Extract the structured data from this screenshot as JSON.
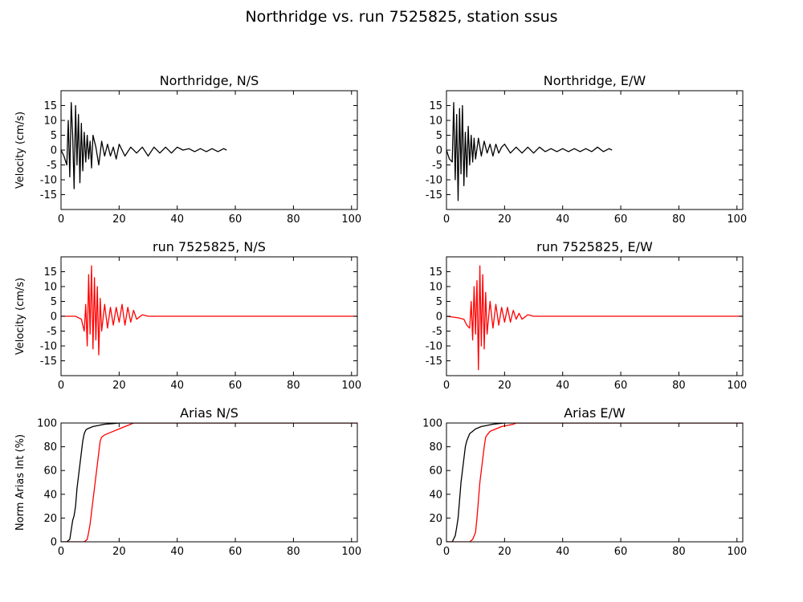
{
  "figure": {
    "title": "Northridge vs. run 7525825, station ssus"
  },
  "chart_data": [
    {
      "type": "line",
      "title": "Northridge, N/S",
      "xlabel": "",
      "ylabel": "Velocity (cm/s)",
      "xlim": [
        0,
        102
      ],
      "ylim": [
        -20,
        20
      ],
      "xticks": [
        0,
        20,
        40,
        60,
        80,
        100
      ],
      "yticks": [
        -15,
        -10,
        -5,
        0,
        5,
        10,
        15
      ],
      "grid": false,
      "series": [
        {
          "color": "#000000",
          "x": [
            0,
            1,
            2,
            2.5,
            3,
            3.5,
            4,
            4.5,
            5,
            5.5,
            6,
            6.5,
            7,
            7.5,
            8,
            8.5,
            9,
            9.5,
            10,
            10.5,
            11,
            12,
            13,
            14,
            15,
            16,
            17,
            18,
            19,
            20,
            22,
            24,
            26,
            28,
            30,
            32,
            34,
            36,
            38,
            40,
            42,
            44,
            46,
            48,
            50,
            52,
            54,
            56,
            57
          ],
          "y": [
            0,
            -2,
            -5,
            10,
            -9,
            16,
            5,
            -13,
            15,
            -5,
            12,
            -11,
            9,
            -7,
            6,
            -4,
            5,
            -3,
            3,
            -6,
            5,
            1,
            -5,
            3,
            -2,
            2,
            -2,
            1,
            -3,
            2,
            -2,
            1,
            -1,
            1,
            -2,
            1,
            -1,
            1,
            -1,
            1,
            0,
            0.5,
            -0.5,
            0.5,
            -0.5,
            0.5,
            -0.5,
            0.5,
            0
          ]
        }
      ]
    },
    {
      "type": "line",
      "title": "Northridge, E/W",
      "xlabel": "",
      "ylabel": "",
      "xlim": [
        0,
        102
      ],
      "ylim": [
        -20,
        20
      ],
      "xticks": [
        0,
        20,
        40,
        60,
        80,
        100
      ],
      "yticks": [
        -15,
        -10,
        -5,
        0,
        5,
        10,
        15
      ],
      "grid": false,
      "series": [
        {
          "color": "#000000",
          "x": [
            0,
            1,
            2,
            2.5,
            3,
            3.5,
            4,
            4.5,
            5,
            5.5,
            6,
            6.5,
            7,
            7.5,
            8,
            8.5,
            9,
            9.5,
            10,
            11,
            12,
            13,
            14,
            15,
            16,
            17,
            18,
            19,
            20,
            22,
            24,
            26,
            28,
            30,
            32,
            34,
            36,
            38,
            40,
            42,
            44,
            46,
            48,
            50,
            52,
            54,
            56,
            57
          ],
          "y": [
            0,
            -3,
            -4,
            16,
            -10,
            12,
            -17,
            14,
            -8,
            15,
            -12,
            6,
            -9,
            8,
            -5,
            5,
            -4,
            4,
            -3,
            4,
            -2,
            3,
            -1,
            2,
            -2,
            2,
            -1,
            1,
            2,
            -1,
            1,
            -1,
            1,
            -1,
            1,
            -0.5,
            0.5,
            -0.5,
            0.5,
            -0.5,
            0.5,
            -0.5,
            0.5,
            -0.5,
            1,
            -0.5,
            0.5,
            0
          ]
        }
      ]
    },
    {
      "type": "line",
      "title": "run 7525825, N/S",
      "xlabel": "",
      "ylabel": "Velocity (cm/s)",
      "xlim": [
        0,
        102
      ],
      "ylim": [
        -20,
        20
      ],
      "xticks": [
        0,
        20,
        40,
        60,
        80,
        100
      ],
      "yticks": [
        -15,
        -10,
        -5,
        0,
        5,
        10,
        15
      ],
      "grid": false,
      "series": [
        {
          "color": "#ff0000",
          "x": [
            0,
            5,
            7,
            8,
            8.5,
            9,
            9.5,
            10,
            10.5,
            11,
            11.5,
            12,
            12.5,
            13,
            13.5,
            14,
            15,
            16,
            17,
            18,
            19,
            20,
            21,
            22,
            23,
            24,
            25,
            26,
            28,
            30,
            40,
            60,
            80,
            102
          ],
          "y": [
            0,
            0,
            -1,
            -5,
            4,
            -10,
            14,
            -6,
            17,
            -11,
            13,
            -8,
            10,
            -13,
            6,
            -5,
            4,
            -4,
            3,
            -3,
            3,
            -2,
            4,
            -3,
            3,
            -2,
            2,
            -1,
            0.5,
            0,
            0,
            0,
            0,
            0
          ]
        }
      ]
    },
    {
      "type": "line",
      "title": "run 7525825, E/W",
      "xlabel": "",
      "ylabel": "",
      "xlim": [
        0,
        102
      ],
      "ylim": [
        -20,
        20
      ],
      "xticks": [
        0,
        20,
        40,
        60,
        80,
        100
      ],
      "yticks": [
        -15,
        -10,
        -5,
        0,
        5,
        10,
        15
      ],
      "grid": false,
      "series": [
        {
          "color": "#ff0000",
          "x": [
            0,
            4,
            6,
            7,
            8,
            8.5,
            9,
            9.5,
            10,
            10.5,
            11,
            11.5,
            12,
            12.5,
            13,
            13.5,
            14,
            15,
            16,
            17,
            18,
            19,
            20,
            21,
            22,
            23,
            24,
            25,
            26,
            28,
            30,
            40,
            60,
            80,
            102
          ],
          "y": [
            0,
            -0.5,
            -1,
            -3,
            -4,
            5,
            -8,
            10,
            -6,
            12,
            -18,
            17,
            -10,
            14,
            -11,
            8,
            -6,
            5,
            -4,
            4,
            -3,
            3,
            -2,
            3,
            -2,
            2,
            -1,
            1,
            -1,
            0.5,
            0,
            0,
            0,
            0,
            0
          ]
        }
      ]
    },
    {
      "type": "line",
      "title": "Arias N/S",
      "xlabel": "",
      "ylabel": "Norm Arias Int (%)",
      "xlim": [
        0,
        102
      ],
      "ylim": [
        0,
        100
      ],
      "xticks": [
        0,
        20,
        40,
        60,
        80,
        100
      ],
      "yticks": [
        0,
        20,
        40,
        60,
        80,
        100
      ],
      "grid": false,
      "series": [
        {
          "color": "#000000",
          "x": [
            0,
            2,
            3,
            3.5,
            4,
            4.5,
            5,
            5.5,
            6,
            6.5,
            7,
            7.5,
            8,
            8.5,
            9,
            10,
            11,
            13,
            15,
            18,
            20,
            102
          ],
          "y": [
            0,
            0,
            2,
            10,
            18,
            22,
            30,
            45,
            55,
            65,
            75,
            85,
            91,
            94,
            95,
            96,
            97,
            98,
            99,
            99.5,
            100,
            100
          ]
        },
        {
          "color": "#ff0000",
          "x": [
            0,
            8,
            9,
            9.5,
            10,
            10.5,
            11,
            11.5,
            12,
            12.5,
            13,
            13.5,
            14,
            15,
            17,
            20,
            22,
            24,
            25,
            102
          ],
          "y": [
            0,
            0,
            2,
            8,
            15,
            25,
            35,
            45,
            55,
            65,
            75,
            85,
            88,
            90,
            92,
            95,
            97,
            99,
            100,
            100
          ]
        }
      ]
    },
    {
      "type": "line",
      "title": "Arias E/W",
      "xlabel": "",
      "ylabel": "",
      "xlim": [
        0,
        102
      ],
      "ylim": [
        0,
        100
      ],
      "xticks": [
        0,
        20,
        40,
        60,
        80,
        100
      ],
      "yticks": [
        0,
        20,
        40,
        60,
        80,
        100
      ],
      "grid": false,
      "series": [
        {
          "color": "#000000",
          "x": [
            0,
            2,
            3,
            3.5,
            4,
            4.5,
            5,
            5.5,
            6,
            6.5,
            7,
            7.5,
            8,
            9,
            10,
            11,
            12,
            14,
            16,
            20,
            102
          ],
          "y": [
            0,
            0,
            5,
            12,
            20,
            35,
            50,
            60,
            70,
            80,
            85,
            88,
            91,
            93,
            95,
            96,
            97,
            98,
            99,
            100,
            100
          ]
        },
        {
          "color": "#ff0000",
          "x": [
            0,
            8,
            9,
            10,
            10.5,
            11,
            11.5,
            12,
            12.5,
            13,
            13.5,
            14,
            15,
            17,
            19,
            21,
            23,
            24,
            102
          ],
          "y": [
            0,
            0,
            2,
            8,
            20,
            35,
            50,
            60,
            70,
            80,
            88,
            90,
            93,
            95,
            97,
            98,
            99,
            100,
            100
          ]
        }
      ]
    }
  ]
}
